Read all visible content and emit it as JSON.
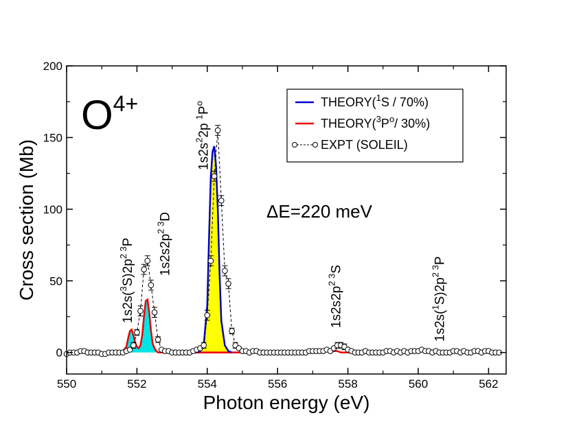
{
  "chart_data": {
    "type": "line",
    "xlabel": "Photon energy (eV)",
    "ylabel": "Cross section (Mb)",
    "xlim": [
      550,
      562.5
    ],
    "ylim": [
      -15,
      200
    ],
    "x_ticks": [
      "550",
      "552",
      "554",
      "556",
      "558",
      "560",
      "562"
    ],
    "y_ticks": [
      "0",
      "50",
      "100",
      "150",
      "200"
    ],
    "grid": false,
    "legend_position": "top-right",
    "colors": {
      "theory_1s": "#0000cc",
      "theory_3p": "#ee0000",
      "fill_yellow": "#ffff00",
      "fill_cyan": "#00e5e5",
      "expt": "#000000"
    },
    "ion_label": {
      "base": "O",
      "charge": "4+"
    },
    "resolution_label": "ΔE=220 meV",
    "legend": [
      {
        "pre": "THEORY(",
        "sup": "1",
        "mid": "S / 70%)",
        "color": "#0000cc"
      },
      {
        "pre": "THEORY(",
        "sup": "3",
        "mid": "P",
        "sup2": "o",
        "post": "/ 30%)",
        "color": "#ee0000"
      },
      {
        "pre": "EXPT (SOLEIL)",
        "color": "#000000"
      }
    ],
    "peak_labels": [
      {
        "x": 551.72,
        "parts": [
          "1s2s(",
          {
            "sup": "3"
          },
          "S)2p",
          {
            "sup": "2 3"
          },
          "P"
        ]
      },
      {
        "x": 552.78,
        "parts": [
          "1s2s2p",
          {
            "sup": "2 3"
          },
          "D"
        ]
      },
      {
        "x": 553.88,
        "parts": [
          "1s2s",
          {
            "sup": "2"
          },
          "2p ",
          {
            "sup": "1"
          },
          "P",
          {
            "sup": "o"
          }
        ]
      },
      {
        "x": 557.65,
        "parts": [
          "1s2s2p",
          {
            "sup": "2 3"
          },
          "S"
        ]
      },
      {
        "x": 560.6,
        "parts": [
          "1s2s(",
          {
            "sup": "1"
          },
          "S)2p",
          {
            "sup": "2 3"
          },
          "P"
        ]
      }
    ],
    "series": [
      {
        "name": "THEORY(1S / 70%)",
        "fill": "yellow",
        "x": [
          553.7,
          553.8,
          553.9,
          554.0,
          554.05,
          554.1,
          554.15,
          554.2,
          554.25,
          554.3,
          554.35,
          554.4,
          554.5,
          554.6,
          554.7
        ],
        "y": [
          0,
          1,
          5,
          33,
          80,
          122,
          140,
          144,
          130,
          100,
          55,
          22,
          5,
          1,
          0
        ]
      },
      {
        "name": "THEORY(3Po/ 30%)",
        "fill": "cyan",
        "x": [
          551.5,
          551.6,
          551.7,
          551.75,
          551.8,
          551.85,
          551.9,
          551.95,
          552.0,
          552.05,
          552.1,
          552.15,
          552.2,
          552.25,
          552.3,
          552.35,
          552.4,
          552.45,
          552.5,
          552.55,
          552.6,
          552.7,
          552.8,
          553.0,
          553.6,
          553.8,
          554.0,
          554.2,
          554.4,
          554.6,
          554.9,
          555.2,
          556.0,
          557.0,
          557.1,
          557.2,
          557.3,
          557.4,
          557.5,
          557.6,
          557.7,
          557.8,
          558.0,
          559.0,
          560.0,
          560.1,
          560.2,
          560.3,
          560.5,
          561.0,
          562.0
        ],
        "y": [
          0,
          1,
          4,
          10,
          15,
          16,
          12,
          7,
          4,
          3,
          5,
          12,
          25,
          36,
          37,
          28,
          15,
          6,
          3,
          1,
          0,
          0,
          0,
          0,
          0,
          0,
          0,
          0,
          0,
          0,
          0,
          0,
          0,
          0,
          1,
          2,
          2,
          1,
          0,
          1,
          1,
          0,
          0,
          0,
          0,
          1,
          1,
          0,
          0,
          0,
          0
        ]
      },
      {
        "name": "EXPT (SOLEIL)",
        "x": [
          550.0,
          550.1,
          550.2,
          550.3,
          550.4,
          550.5,
          550.6,
          550.7,
          550.8,
          550.9,
          551.0,
          551.1,
          551.2,
          551.3,
          551.4,
          551.5,
          551.6,
          551.7,
          551.8,
          551.9,
          552.0,
          552.1,
          552.2,
          552.3,
          552.4,
          552.5,
          552.6,
          552.7,
          552.8,
          552.9,
          553.0,
          553.1,
          553.2,
          553.3,
          553.4,
          553.5,
          553.6,
          553.7,
          553.8,
          553.9,
          554.0,
          554.1,
          554.2,
          554.3,
          554.4,
          554.5,
          554.6,
          554.7,
          554.8,
          554.9,
          555.0,
          555.1,
          555.2,
          555.3,
          555.4,
          555.5,
          555.6,
          555.7,
          555.8,
          555.9,
          556.0,
          556.1,
          556.2,
          556.3,
          556.4,
          556.5,
          556.6,
          556.7,
          556.8,
          556.9,
          557.0,
          557.1,
          557.2,
          557.3,
          557.4,
          557.5,
          557.6,
          557.7,
          557.8,
          557.9,
          558.0,
          558.1,
          558.2,
          558.3,
          558.4,
          558.5,
          558.6,
          558.7,
          558.8,
          558.9,
          559.0,
          559.1,
          559.2,
          559.3,
          559.4,
          559.5,
          559.6,
          559.7,
          559.8,
          559.9,
          560.0,
          560.1,
          560.2,
          560.3,
          560.4,
          560.5,
          560.6,
          560.7,
          560.8,
          560.9,
          561.0,
          561.1,
          561.2,
          561.3,
          561.4,
          561.5,
          561.6,
          561.7,
          561.8,
          561.9,
          562.0,
          562.1,
          562.2,
          562.3
        ],
        "y": [
          -1,
          0,
          0,
          0,
          1,
          1,
          0,
          0,
          0,
          0,
          -1,
          -1,
          0,
          0,
          0,
          0,
          0,
          1,
          2,
          5,
          14,
          29,
          58,
          64,
          47,
          28,
          9,
          2,
          1,
          1,
          0,
          0,
          0,
          0,
          0,
          0,
          1,
          2,
          3,
          5,
          26,
          64,
          123,
          155,
          106,
          57,
          48,
          15,
          5,
          3,
          1,
          1,
          0,
          1,
          1,
          0,
          0,
          0,
          0,
          0,
          0,
          0,
          0,
          0,
          0,
          0,
          0,
          0,
          0,
          1,
          1,
          1,
          1,
          1,
          2,
          1,
          3,
          5,
          5,
          4,
          2,
          1,
          0,
          0,
          0,
          1,
          0,
          0,
          0,
          0,
          0,
          1,
          1,
          0,
          1,
          0,
          1,
          0,
          1,
          1,
          1,
          2,
          1,
          1,
          0,
          1,
          0,
          0,
          0,
          0,
          1,
          1,
          0,
          1,
          0,
          0,
          1,
          1,
          0,
          1,
          1,
          0,
          0,
          0
        ]
      }
    ]
  }
}
